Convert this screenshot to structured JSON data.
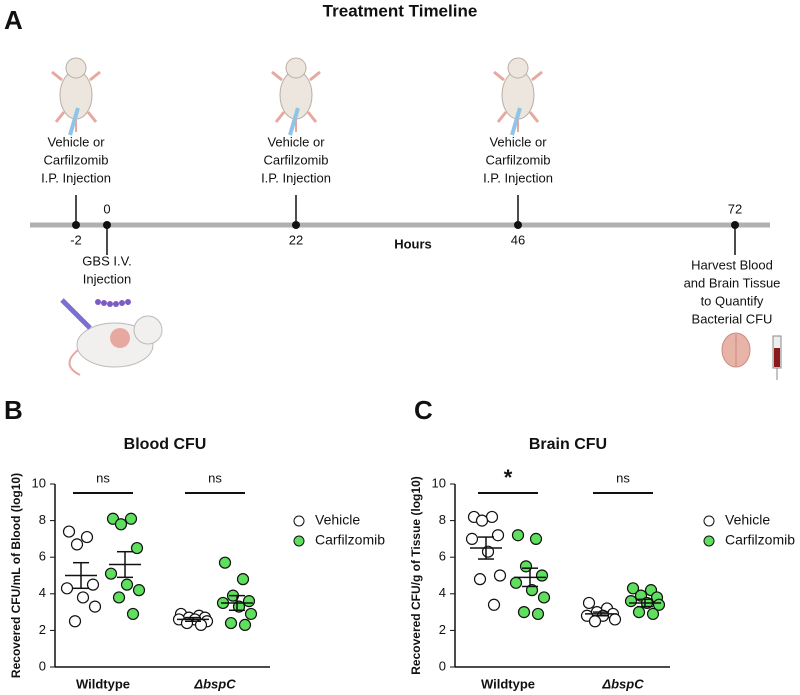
{
  "panel_letters": [
    "A",
    "B",
    "C"
  ],
  "timeline": {
    "title": "Treatment Timeline",
    "axis_label": "Hours",
    "events": [
      {
        "tick": -2,
        "label": [
          "Vehicle or",
          "Carfilzomib",
          "I.P. Injection"
        ]
      },
      {
        "tick": 0,
        "label": [
          "GBS I.V.",
          "Injection"
        ]
      },
      {
        "tick": 22,
        "label": [
          "Vehicle or",
          "Carfilzomib",
          "I.P. Injection"
        ]
      },
      {
        "tick": 46,
        "label": [
          "Vehicle or",
          "Carfilzomib",
          "I.P. Injection"
        ]
      },
      {
        "tick": 72,
        "label": [
          "Harvest Blood",
          "and Brain Tissue",
          "to Quantify",
          "Bacterial CFU"
        ]
      }
    ]
  },
  "chart_data": [
    {
      "type": "scatter",
      "title": "Blood CFU",
      "ylabel": "Recovered CFU/mL of Blood (log10)",
      "categories": [
        "Wildtype",
        "ΔbspC"
      ],
      "ylim": [
        0,
        10
      ],
      "yticks": [
        0,
        2,
        4,
        6,
        8,
        10
      ],
      "significance": [
        "ns",
        "ns"
      ],
      "legend": "right",
      "series": [
        {
          "name": "Vehicle",
          "color": "#ffffff",
          "mean": [
            5.0,
            2.6
          ],
          "sem": [
            0.7,
            0.1
          ],
          "values": [
            [
              7.4,
              7.1,
              6.7,
              4.5,
              4.3,
              3.8,
              3.3,
              2.5
            ],
            [
              2.9,
              2.8,
              2.7,
              2.7,
              2.6,
              2.6,
              2.5,
              2.4,
              2.3
            ]
          ]
        },
        {
          "name": "Carfilzomib",
          "color": "#5ee05e",
          "mean": [
            5.6,
            3.5
          ],
          "sem": [
            0.7,
            0.4
          ],
          "values": [
            [
              8.1,
              8.1,
              7.8,
              6.5,
              5.1,
              4.5,
              4.2,
              3.8,
              2.9
            ],
            [
              5.7,
              4.8,
              3.9,
              3.6,
              3.5,
              3.3,
              2.9,
              2.4,
              2.3
            ]
          ]
        }
      ]
    },
    {
      "type": "scatter",
      "title": "Brain CFU",
      "ylabel": "Recovered CFU/g of Tissue (log10)",
      "categories": [
        "Wildtype",
        "ΔbspC"
      ],
      "ylim": [
        0,
        10
      ],
      "yticks": [
        0,
        2,
        4,
        6,
        8,
        10
      ],
      "significance": [
        "*",
        "ns"
      ],
      "legend": "right",
      "series": [
        {
          "name": "Vehicle",
          "color": "#ffffff",
          "mean": [
            6.5,
            2.9
          ],
          "sem": [
            0.6,
            0.1
          ],
          "values": [
            [
              8.2,
              8.2,
              8.0,
              7.2,
              7.0,
              6.3,
              5.0,
              4.8,
              3.4
            ],
            [
              3.5,
              3.2,
              3.0,
              2.9,
              2.8,
              2.8,
              2.6,
              2.5
            ]
          ]
        },
        {
          "name": "Carfilzomib",
          "color": "#5ee05e",
          "mean": [
            4.9,
            3.5
          ],
          "sem": [
            0.5,
            0.2
          ],
          "values": [
            [
              7.2,
              7.0,
              5.5,
              5.0,
              4.6,
              4.2,
              3.8,
              3.0,
              2.9
            ],
            [
              4.3,
              4.2,
              3.9,
              3.8,
              3.6,
              3.5,
              3.4,
              3.0,
              2.9
            ]
          ]
        }
      ]
    }
  ]
}
